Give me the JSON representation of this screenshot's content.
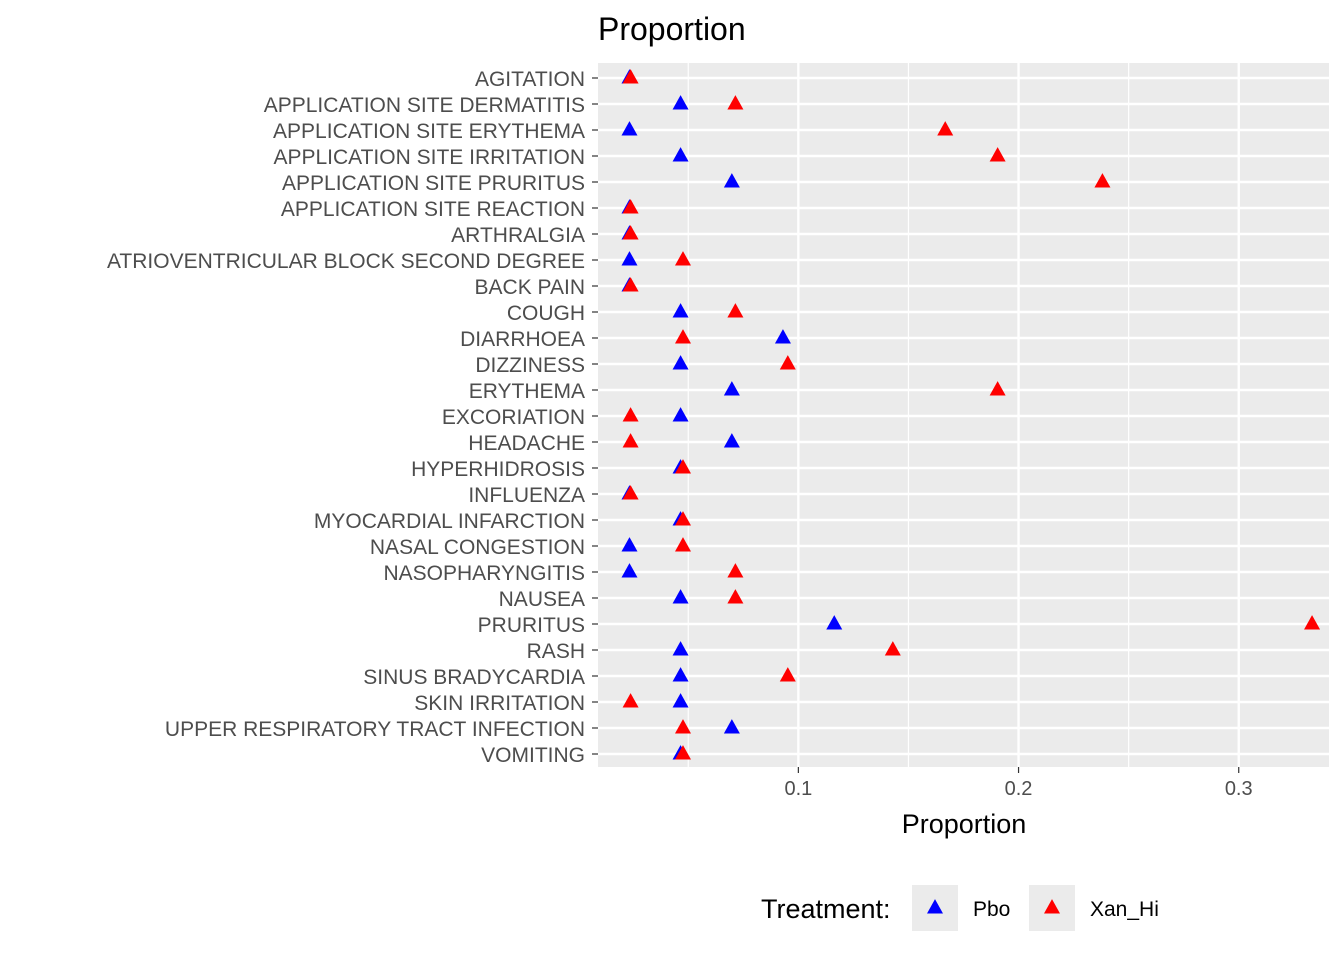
{
  "chart_data": {
    "type": "scatter",
    "title": "Proportion",
    "xlabel": "Proportion",
    "ylabel": "",
    "xlim": [
      0.009,
      0.341
    ],
    "x_major_ticks": [
      0.1,
      0.2,
      0.3
    ],
    "x_tick_labels": [
      "0.1",
      "0.2",
      "0.3"
    ],
    "x_minor_ticks": [
      0.05,
      0.15,
      0.25
    ],
    "grid": true,
    "legend_position": "bottom",
    "legend_title": "Treatment:",
    "marker": "triangle",
    "categories": [
      "AGITATION",
      "APPLICATION SITE DERMATITIS",
      "APPLICATION SITE ERYTHEMA",
      "APPLICATION SITE IRRITATION",
      "APPLICATION SITE PRURITUS",
      "APPLICATION SITE REACTION",
      "ARTHRALGIA",
      "ATRIOVENTRICULAR BLOCK SECOND DEGREE",
      "BACK PAIN",
      "COUGH",
      "DIARRHOEA",
      "DIZZINESS",
      "ERYTHEMA",
      "EXCORIATION",
      "HEADACHE",
      "HYPERHIDROSIS",
      "INFLUENZA",
      "MYOCARDIAL INFARCTION",
      "NASAL CONGESTION",
      "NASOPHARYNGITIS",
      "NAUSEA",
      "PRURITUS",
      "RASH",
      "SINUS BRADYCARDIA",
      "SKIN IRRITATION",
      "UPPER RESPIRATORY TRACT INFECTION",
      "VOMITING"
    ],
    "series": [
      {
        "name": "Pbo",
        "color": "#0000ff",
        "values": [
          0.0233,
          0.0465,
          0.0233,
          0.0465,
          0.0698,
          0.0233,
          0.0233,
          0.0233,
          0.0233,
          0.0465,
          0.093,
          0.0465,
          0.0698,
          0.0465,
          0.0698,
          0.0465,
          0.0233,
          0.0465,
          0.0233,
          0.0233,
          0.0465,
          0.1163,
          0.0465,
          0.0465,
          0.0465,
          0.0698,
          0.0465
        ]
      },
      {
        "name": "Xan_Hi",
        "color": "#ff0000",
        "values": [
          0.0238,
          0.0714,
          0.1667,
          0.1905,
          0.2381,
          0.0238,
          0.0238,
          0.0476,
          0.0238,
          0.0714,
          0.0476,
          0.0952,
          0.1905,
          0.0238,
          0.0238,
          0.0476,
          0.0238,
          0.0476,
          0.0476,
          0.0714,
          0.0714,
          0.3333,
          0.1429,
          0.0952,
          0.0238,
          0.0476,
          0.0476
        ]
      }
    ]
  }
}
